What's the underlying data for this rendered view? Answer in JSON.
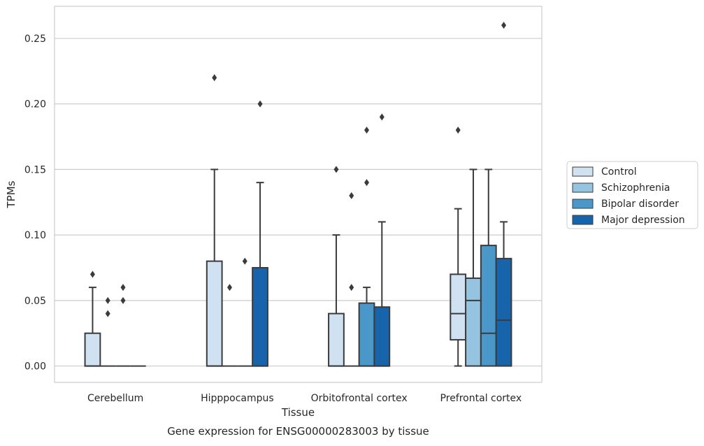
{
  "chart_data": {
    "type": "boxplot",
    "caption": "Gene expression for ENSG00000283003 by tissue",
    "xlabel": "Tissue",
    "ylabel": "TPMs",
    "ylim": [
      -0.0125,
      0.2745
    ],
    "yticks": [
      "0.00",
      "0.05",
      "0.10",
      "0.15",
      "0.20",
      "0.25"
    ],
    "ytick_values": [
      0,
      0.05,
      0.1,
      0.15,
      0.2,
      0.25
    ],
    "grid": true,
    "legend_position": "right",
    "categories": [
      "Cerebellum",
      "Hipppocampus",
      "Orbitofrontal cortex",
      "Prefrontal cortex"
    ],
    "series": [
      {
        "name": "Control",
        "color": "#d0e1f2",
        "boxes": [
          {
            "q1": 0,
            "median": 0,
            "q3": 0.025,
            "whislo": 0,
            "whishi": 0.06,
            "fliers": [
              0.07
            ]
          },
          {
            "q1": 0,
            "median": 0,
            "q3": 0.08,
            "whislo": 0,
            "whishi": 0.15,
            "fliers": [
              0.22
            ]
          },
          {
            "q1": 0,
            "median": 0,
            "q3": 0.04,
            "whislo": 0,
            "whishi": 0.1,
            "fliers": [
              0.15
            ]
          },
          {
            "q1": 0.02,
            "median": 0.04,
            "q3": 0.07,
            "whislo": 0,
            "whishi": 0.12,
            "fliers": [
              0.18
            ]
          }
        ]
      },
      {
        "name": "Schizophrenia",
        "color": "#94c4df",
        "boxes": [
          {
            "q1": 0,
            "median": 0,
            "q3": 0,
            "whislo": 0,
            "whishi": 0,
            "fliers": [
              0.04,
              0.05
            ]
          },
          {
            "q1": 0,
            "median": 0,
            "q3": 0,
            "whislo": 0,
            "whishi": 0,
            "fliers": [
              0.06
            ]
          },
          {
            "q1": 0,
            "median": 0,
            "q3": 0,
            "whislo": 0,
            "whishi": 0,
            "fliers": [
              0.06,
              0.13
            ]
          },
          {
            "q1": 0,
            "median": 0.05,
            "q3": 0.067,
            "whislo": 0,
            "whishi": 0.15,
            "fliers": []
          }
        ]
      },
      {
        "name": "Bipolar disorder",
        "color": "#4a98c9",
        "boxes": [
          {
            "q1": 0,
            "median": 0,
            "q3": 0,
            "whislo": 0,
            "whishi": 0,
            "fliers": [
              0.05,
              0.06
            ]
          },
          {
            "q1": 0,
            "median": 0,
            "q3": 0,
            "whislo": 0,
            "whishi": 0,
            "fliers": [
              0.08
            ]
          },
          {
            "q1": 0,
            "median": 0,
            "q3": 0.048,
            "whislo": 0,
            "whishi": 0.06,
            "fliers": [
              0.14,
              0.18
            ]
          },
          {
            "q1": 0,
            "median": 0.025,
            "q3": 0.092,
            "whislo": 0,
            "whishi": 0.15,
            "fliers": []
          }
        ]
      },
      {
        "name": "Major depression",
        "color": "#1764ab",
        "boxes": [
          {
            "q1": 0,
            "median": 0,
            "q3": 0,
            "whislo": 0,
            "whishi": 0,
            "fliers": []
          },
          {
            "q1": 0,
            "median": 0,
            "q3": 0.075,
            "whislo": 0,
            "whishi": 0.14,
            "fliers": [
              0.2
            ]
          },
          {
            "q1": 0,
            "median": 0,
            "q3": 0.045,
            "whislo": 0,
            "whishi": 0.11,
            "fliers": [
              0.19
            ]
          },
          {
            "q1": 0,
            "median": 0.035,
            "q3": 0.082,
            "whislo": 0,
            "whishi": 0.11,
            "fliers": [
              0.26
            ]
          }
        ]
      }
    ]
  }
}
